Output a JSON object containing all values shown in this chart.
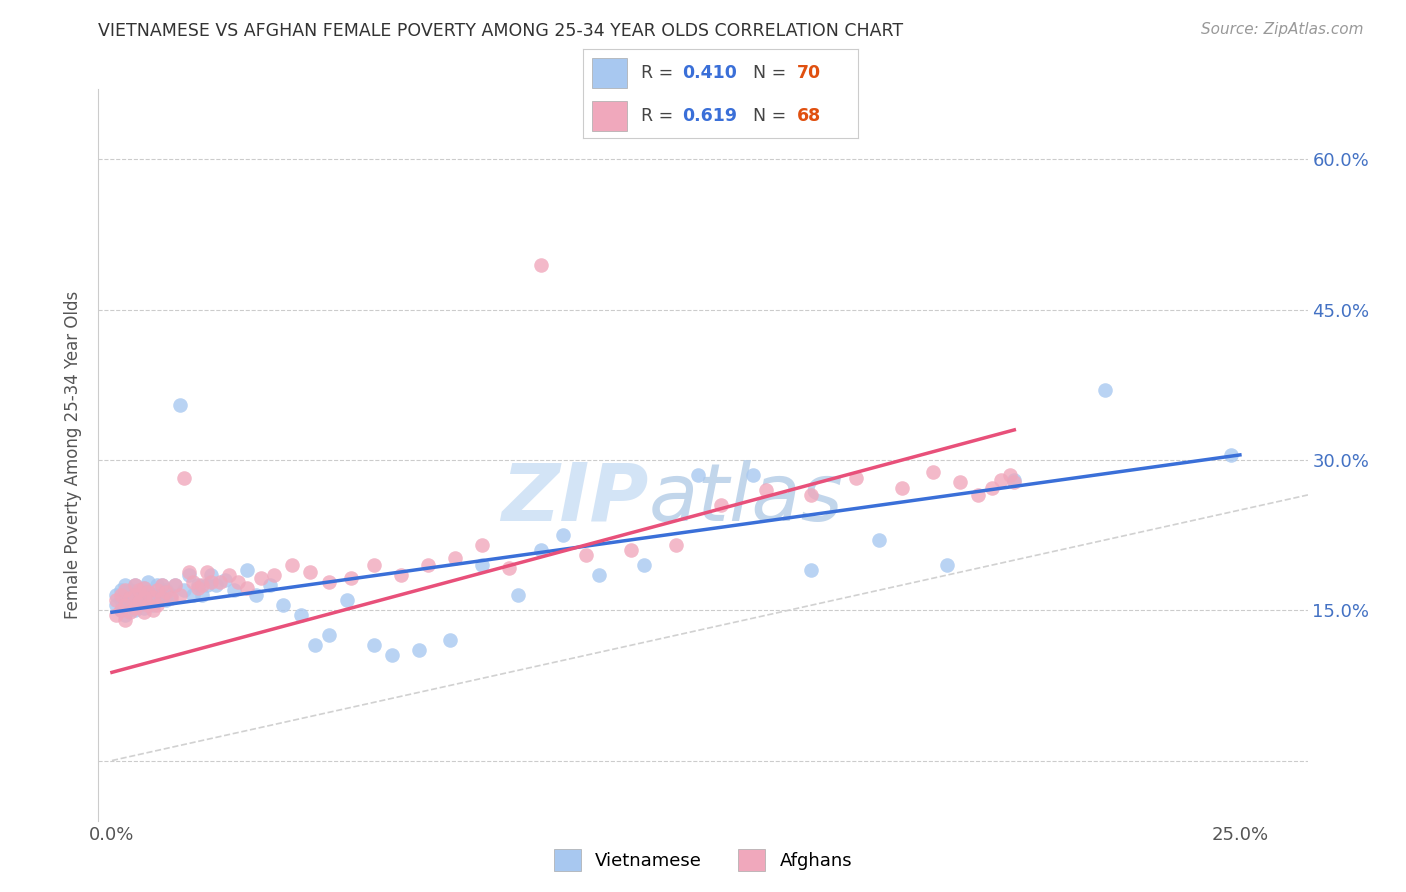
{
  "title": "VIETNAMESE VS AFGHAN FEMALE POVERTY AMONG 25-34 YEAR OLDS CORRELATION CHART",
  "source": "Source: ZipAtlas.com",
  "ylabel": "Female Poverty Among 25-34 Year Olds",
  "ytick_labels": [
    "",
    "15.0%",
    "30.0%",
    "45.0%",
    "60.0%"
  ],
  "ytick_positions": [
    0.0,
    0.15,
    0.3,
    0.45,
    0.6
  ],
  "xlim": [
    -0.003,
    0.265
  ],
  "ylim": [
    -0.06,
    0.67
  ],
  "viet_R": 0.41,
  "viet_N": 70,
  "afghan_R": 0.619,
  "afghan_N": 68,
  "viet_color": "#a8c8f0",
  "afghan_color": "#f0a8bc",
  "viet_line_color": "#3a6fd8",
  "afghan_line_color": "#e8507a",
  "diagonal_color": "#cccccc",
  "background_color": "#ffffff",
  "watermark_zip": "ZIP",
  "watermark_atlas": "atlas",
  "viet_x": [
    0.001,
    0.001,
    0.002,
    0.002,
    0.002,
    0.003,
    0.003,
    0.003,
    0.004,
    0.004,
    0.004,
    0.005,
    0.005,
    0.005,
    0.006,
    0.006,
    0.006,
    0.007,
    0.007,
    0.007,
    0.008,
    0.008,
    0.008,
    0.009,
    0.009,
    0.01,
    0.01,
    0.011,
    0.011,
    0.012,
    0.012,
    0.013,
    0.014,
    0.015,
    0.016,
    0.017,
    0.018,
    0.019,
    0.02,
    0.021,
    0.022,
    0.023,
    0.025,
    0.027,
    0.03,
    0.032,
    0.035,
    0.038,
    0.042,
    0.045,
    0.048,
    0.052,
    0.058,
    0.062,
    0.068,
    0.075,
    0.082,
    0.09,
    0.095,
    0.1,
    0.108,
    0.118,
    0.13,
    0.142,
    0.155,
    0.17,
    0.185,
    0.2,
    0.22,
    0.248
  ],
  "viet_y": [
    0.155,
    0.165,
    0.15,
    0.17,
    0.16,
    0.145,
    0.175,
    0.165,
    0.155,
    0.17,
    0.16,
    0.15,
    0.165,
    0.175,
    0.155,
    0.168,
    0.16,
    0.152,
    0.162,
    0.172,
    0.158,
    0.168,
    0.178,
    0.155,
    0.165,
    0.16,
    0.175,
    0.165,
    0.175,
    0.16,
    0.17,
    0.165,
    0.175,
    0.355,
    0.17,
    0.185,
    0.165,
    0.175,
    0.165,
    0.175,
    0.185,
    0.175,
    0.18,
    0.17,
    0.19,
    0.165,
    0.175,
    0.155,
    0.145,
    0.115,
    0.125,
    0.16,
    0.115,
    0.105,
    0.11,
    0.12,
    0.195,
    0.165,
    0.21,
    0.225,
    0.185,
    0.195,
    0.285,
    0.285,
    0.19,
    0.22,
    0.195,
    0.28,
    0.37,
    0.305
  ],
  "afghan_x": [
    0.001,
    0.001,
    0.002,
    0.002,
    0.003,
    0.003,
    0.003,
    0.004,
    0.004,
    0.005,
    0.005,
    0.005,
    0.006,
    0.006,
    0.007,
    0.007,
    0.007,
    0.008,
    0.008,
    0.009,
    0.009,
    0.01,
    0.01,
    0.011,
    0.011,
    0.012,
    0.013,
    0.014,
    0.015,
    0.016,
    0.017,
    0.018,
    0.019,
    0.02,
    0.021,
    0.022,
    0.024,
    0.026,
    0.028,
    0.03,
    0.033,
    0.036,
    0.04,
    0.044,
    0.048,
    0.053,
    0.058,
    0.064,
    0.07,
    0.076,
    0.082,
    0.088,
    0.095,
    0.105,
    0.115,
    0.125,
    0.135,
    0.145,
    0.155,
    0.165,
    0.175,
    0.182,
    0.188,
    0.192,
    0.195,
    0.197,
    0.199,
    0.2
  ],
  "afghan_y": [
    0.145,
    0.16,
    0.15,
    0.165,
    0.14,
    0.155,
    0.17,
    0.148,
    0.162,
    0.152,
    0.165,
    0.175,
    0.158,
    0.17,
    0.148,
    0.162,
    0.172,
    0.155,
    0.168,
    0.15,
    0.163,
    0.155,
    0.17,
    0.162,
    0.175,
    0.168,
    0.162,
    0.175,
    0.165,
    0.282,
    0.188,
    0.178,
    0.172,
    0.175,
    0.188,
    0.178,
    0.178,
    0.185,
    0.178,
    0.172,
    0.182,
    0.185,
    0.195,
    0.188,
    0.178,
    0.182,
    0.195,
    0.185,
    0.195,
    0.202,
    0.215,
    0.192,
    0.495,
    0.205,
    0.21,
    0.215,
    0.255,
    0.27,
    0.265,
    0.282,
    0.272,
    0.288,
    0.278,
    0.265,
    0.272,
    0.28,
    0.285,
    0.278
  ],
  "viet_line_x0": 0.0,
  "viet_line_y0": 0.148,
  "viet_line_x1": 0.25,
  "viet_line_y1": 0.305,
  "afghan_line_x0": 0.0,
  "afghan_line_y0": 0.088,
  "afghan_line_x1": 0.2,
  "afghan_line_y1": 0.33
}
